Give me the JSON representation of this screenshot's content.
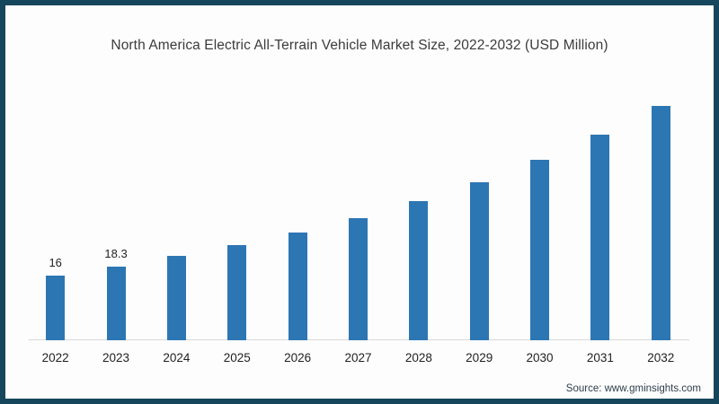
{
  "header": {
    "title": "North America Electric All-Terrain Vehicle Market Size, 2022-2032 (USD Million)"
  },
  "footer": {
    "source": "Source: www.gminsights.com"
  },
  "colors": {
    "frame_border": "#15465c",
    "background": "#fdfdfd",
    "bar": "#2d76b4",
    "axis_line": "#d9d9d9",
    "title_text": "#3b3b3b",
    "tick_text": "#222222",
    "source_text": "#2e3d4a"
  },
  "chart_data": {
    "type": "bar",
    "title": "North America Electric All-Terrain Vehicle Market Size, 2022-2032 (USD Million)",
    "categories": [
      "2022",
      "2023",
      "2024",
      "2025",
      "2026",
      "2027",
      "2028",
      "2029",
      "2030",
      "2031",
      "2032"
    ],
    "values": [
      16,
      18.3,
      21,
      23.5,
      26.7,
      30.3,
      34.4,
      39.2,
      44.6,
      50.9,
      58.1
    ],
    "point_labels": [
      "16",
      "18.3",
      "",
      "",
      "",
      "",
      "",
      "",
      "",
      "",
      ""
    ],
    "unit": "USD Million",
    "xlabel": "",
    "ylabel": "",
    "ylim": [
      0,
      65
    ],
    "grid": false,
    "legend": false
  }
}
